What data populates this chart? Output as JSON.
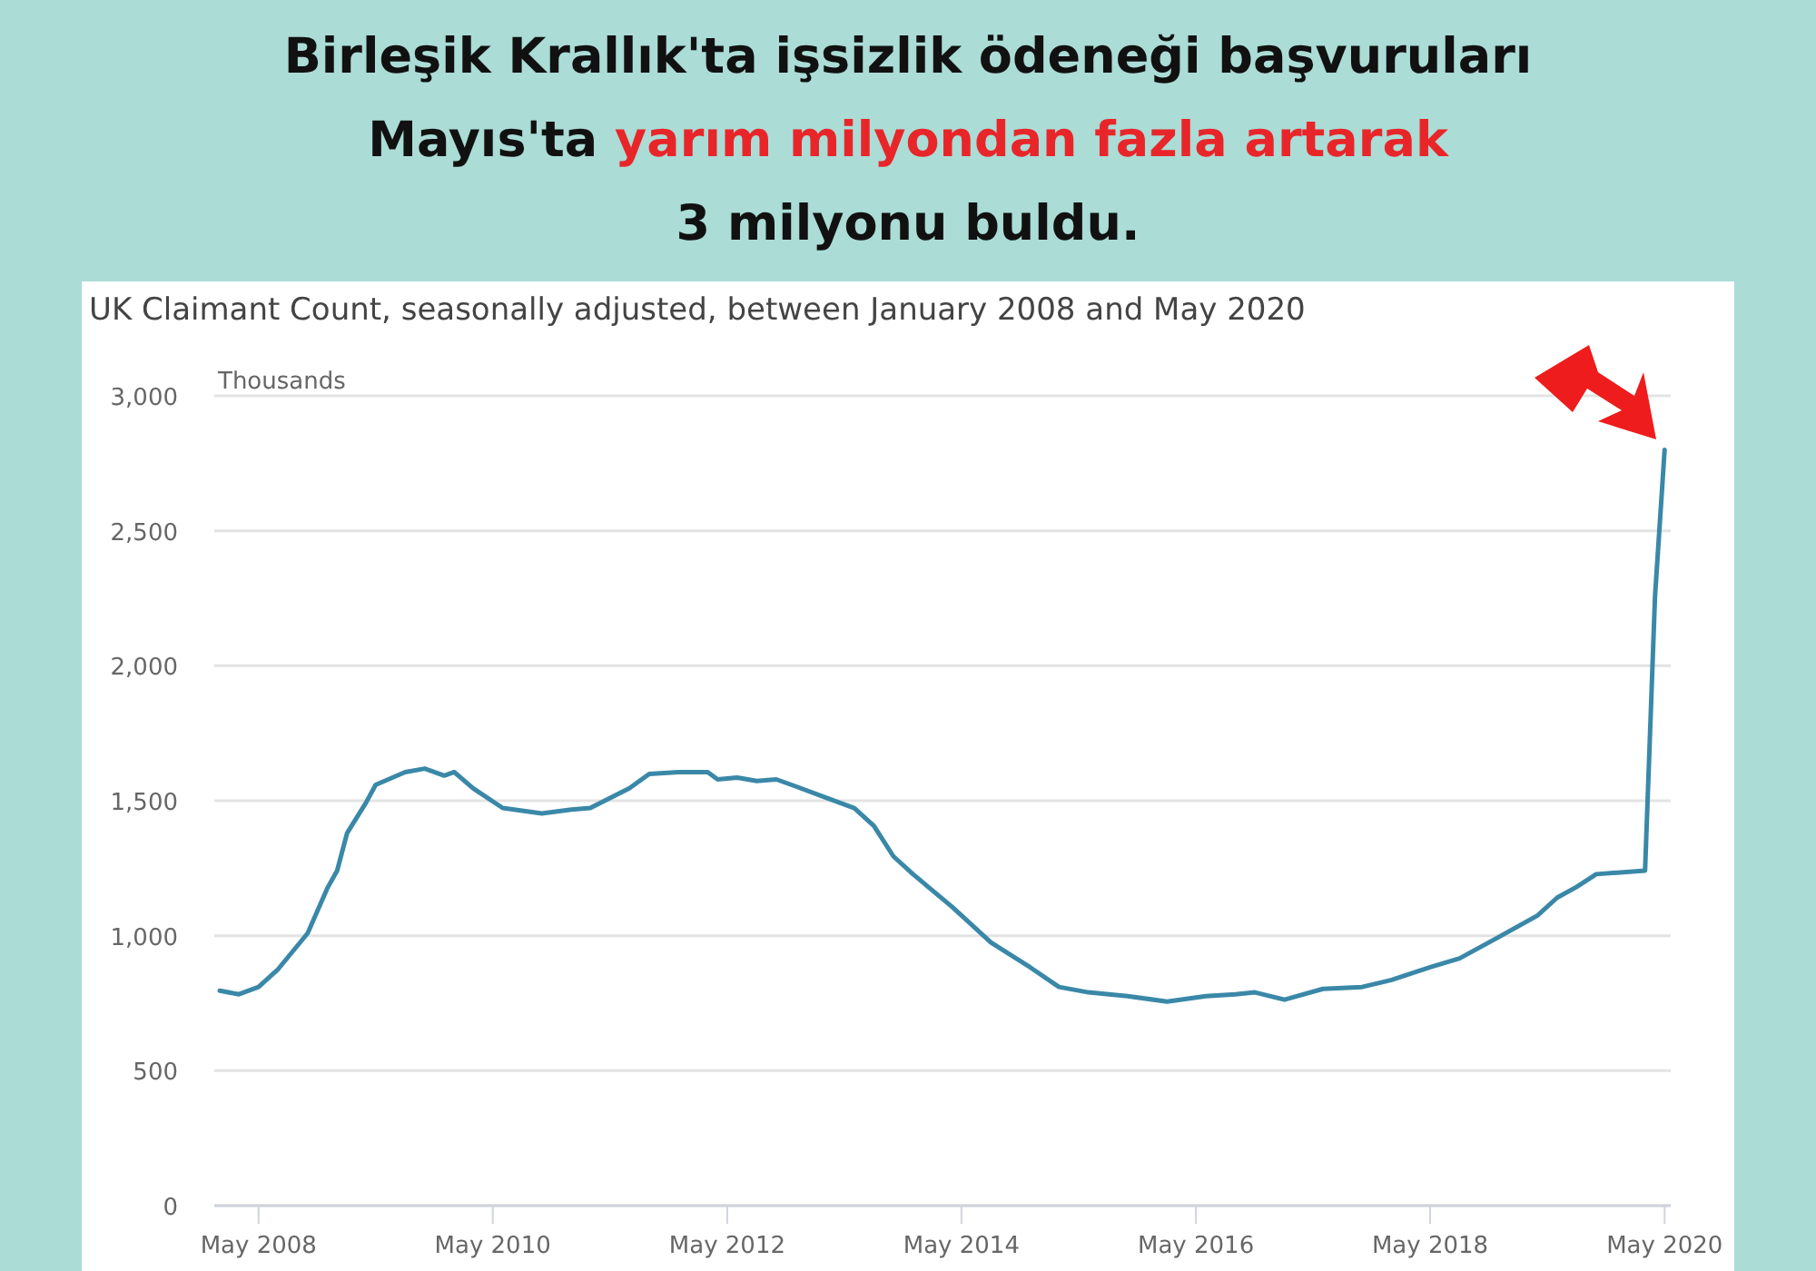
{
  "chart_data": {
    "type": "line",
    "title": "Birleşik Krallık'ta işsizlik ödeneği başvuruları\nMayıs'ta yarım milyondan fazla artarak\n3 milyonu buldu.",
    "subtitle": "UK Claimant Count, seasonally adjusted, between January 2008 and May 2020",
    "ylabel": "Thousands",
    "x": [
      "2008-01",
      "2008-03",
      "2008-05",
      "2008-07",
      "2008-10",
      "2008-12",
      "2009-01",
      "2009-02",
      "2009-04",
      "2009-05",
      "2009-08",
      "2009-10",
      "2009-12",
      "2010-01",
      "2010-03",
      "2010-06",
      "2010-10",
      "2011-01",
      "2011-03",
      "2011-07",
      "2011-09",
      "2011-12",
      "2012-03",
      "2012-04",
      "2012-06",
      "2012-08",
      "2012-10",
      "2012-12",
      "2013-03",
      "2013-06",
      "2013-08",
      "2013-10",
      "2013-12",
      "2014-04",
      "2014-08",
      "2014-12",
      "2015-03",
      "2015-06",
      "2015-10",
      "2016-02",
      "2016-06",
      "2016-09",
      "2016-11",
      "2017-02",
      "2017-06",
      "2017-10",
      "2018-01",
      "2018-05",
      "2018-08",
      "2018-12",
      "2019-04",
      "2019-06",
      "2019-08",
      "2019-10",
      "2020-03",
      "2020-04",
      "2020-05"
    ],
    "series": [
      {
        "color": "#3a88a8",
        "values": [
          796,
          783,
          810,
          876,
          1009,
          1175,
          1241,
          1380,
          1493,
          1559,
          1606,
          1619,
          1593,
          1606,
          1546,
          1473,
          1453,
          1467,
          1473,
          1546,
          1599,
          1606,
          1606,
          1579,
          1586,
          1573,
          1579,
          1553,
          1513,
          1473,
          1407,
          1294,
          1228,
          1108,
          975,
          883,
          810,
          790,
          776,
          756,
          776,
          783,
          790,
          763,
          803,
          810,
          836,
          883,
          916,
          995,
          1075,
          1141,
          1181,
          1228,
          1241,
          2256,
          2800
        ]
      }
    ],
    "xlim": [
      "2007-12-15",
      "2020-05-20"
    ],
    "xticks": [
      {
        "value": "2008-05",
        "label": "May 2008"
      },
      {
        "value": "2010-05",
        "label": "May 2010"
      },
      {
        "value": "2012-05",
        "label": "May 2012"
      },
      {
        "value": "2014-05",
        "label": "May 2014"
      },
      {
        "value": "2016-05",
        "label": "May 2016"
      },
      {
        "value": "2018-05",
        "label": "May 2018"
      },
      {
        "value": "2020-05",
        "label": "May 2020"
      }
    ],
    "ylim": [
      0,
      3000
    ],
    "yticks": [
      {
        "value": 0,
        "label": "0"
      },
      {
        "value": 500,
        "label": "500"
      },
      {
        "value": 1000,
        "label": "1,000"
      },
      {
        "value": 1500,
        "label": "1,500"
      },
      {
        "value": 2000,
        "label": "2,000"
      },
      {
        "value": 2500,
        "label": "2,500"
      },
      {
        "value": 3000,
        "label": "3,000"
      }
    ],
    "grid": "y",
    "marker": "none",
    "line_style": "solid"
  }
}
